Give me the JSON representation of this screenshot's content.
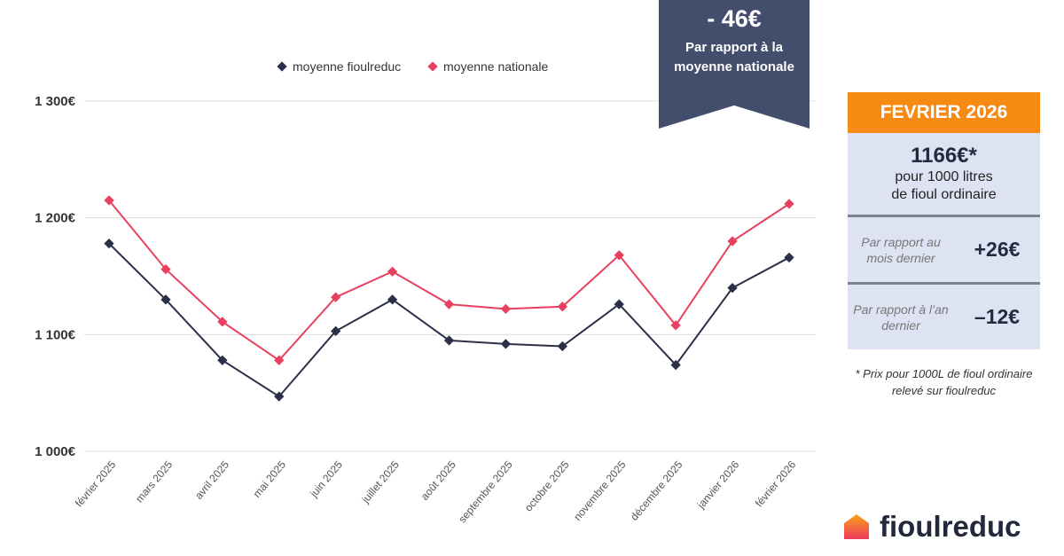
{
  "chart_data": {
    "type": "line",
    "categories": [
      "février 2025",
      "mars 2025",
      "avril 2025",
      "mai 2025",
      "juin 2025",
      "juillet 2025",
      "août 2025",
      "septembre 2025",
      "octobre 2025",
      "novembre 2025",
      "décembre 2025",
      "janvier 2026",
      "février 2026"
    ],
    "series": [
      {
        "name": "moyenne fioulreduc",
        "color": "#2b3048",
        "values": [
          1178,
          1130,
          1078,
          1047,
          1103,
          1130,
          1095,
          1092,
          1090,
          1126,
          1074,
          1140,
          1166
        ]
      },
      {
        "name": "moyenne nationale",
        "color": "#e8415f",
        "values": [
          1215,
          1156,
          1111,
          1078,
          1132,
          1154,
          1126,
          1122,
          1124,
          1168,
          1108,
          1180,
          1212
        ]
      }
    ],
    "ylim": [
      1000,
      1300
    ],
    "yticks": [
      "1 000€",
      "1 100€",
      "1 200€",
      "1 300€"
    ],
    "grid": true,
    "legend": "top"
  },
  "banner": {
    "value": "- 46€",
    "text": "Par rapport à la moyenne nationale"
  },
  "panel": {
    "header": "FEVRIER 2026",
    "price": "1166€*",
    "desc1": "pour 1000 litres",
    "desc2": "de fioul ordinaire",
    "rows": [
      {
        "label": "Par rapport au mois dernier",
        "value": "+26€"
      },
      {
        "label": "Par rapport à l’an dernier",
        "value": "–12€"
      }
    ]
  },
  "note": "* Prix pour 1000L de fioul ordinaire relevé sur fioulreduc",
  "logo": "fioulreduc"
}
